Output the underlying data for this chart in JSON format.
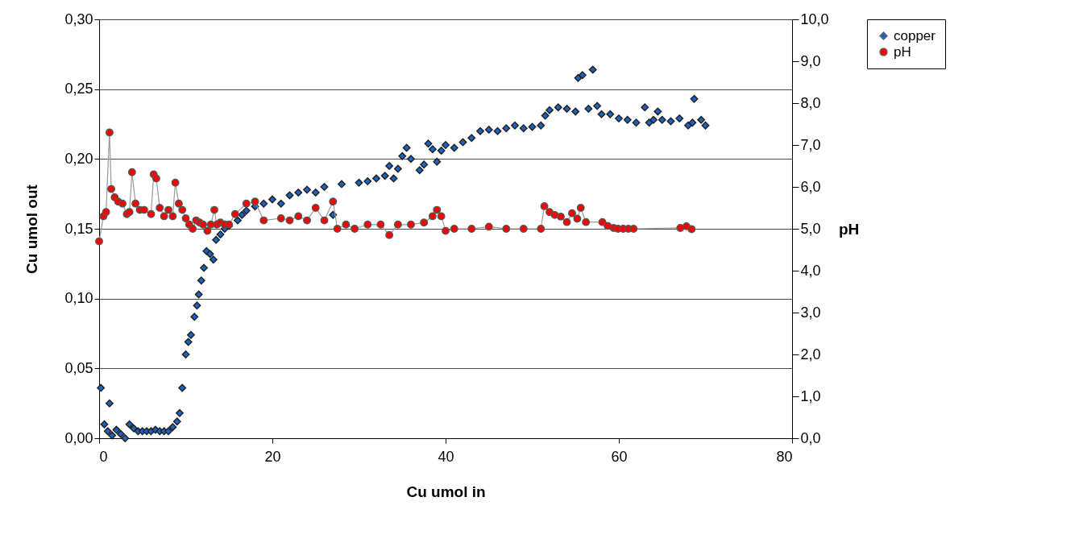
{
  "chart_data": {
    "type": "scatter",
    "xlabel": "Cu umol in",
    "ylabel": "Cu umol out",
    "y2label": "pH",
    "xlim": [
      0,
      80
    ],
    "xticks": [
      0,
      20,
      40,
      60,
      80
    ],
    "ylim": [
      0,
      0.3
    ],
    "yticks": [
      {
        "value": 0,
        "label": "0,00"
      },
      {
        "value": 0.05,
        "label": "0,05"
      },
      {
        "value": 0.1,
        "label": "0,10"
      },
      {
        "value": 0.15,
        "label": "0,15"
      },
      {
        "value": 0.2,
        "label": "0,20"
      },
      {
        "value": 0.25,
        "label": "0,25"
      },
      {
        "value": 0.3,
        "label": "0,30"
      }
    ],
    "y2lim": [
      0,
      10
    ],
    "y2ticks": [
      {
        "value": 0,
        "label": "0,0"
      },
      {
        "value": 1,
        "label": "1,0"
      },
      {
        "value": 2,
        "label": "2,0"
      },
      {
        "value": 3,
        "label": "3,0"
      },
      {
        "value": 4,
        "label": "4,0"
      },
      {
        "value": 5,
        "label": "5,0"
      },
      {
        "value": 6,
        "label": "6,0"
      },
      {
        "value": 7,
        "label": "7,0"
      },
      {
        "value": 8,
        "label": "8,0"
      },
      {
        "value": 9,
        "label": "9,0"
      },
      {
        "value": 10,
        "label": "10,0"
      }
    ],
    "grid": "y",
    "legend": "right",
    "series": [
      {
        "name": "copper",
        "marker": "diamond",
        "color": "#1a64c8",
        "x": [
          0.2,
          0.6,
          1.0,
          1.2,
          1.5,
          2.0,
          2.5,
          3.0,
          3.5,
          4.0,
          4.5,
          5.0,
          5.5,
          6.0,
          6.5,
          7.0,
          7.5,
          8.0,
          8.5,
          9.0,
          9.3,
          9.6,
          10.0,
          10.3,
          10.6,
          11.0,
          11.3,
          11.5,
          11.8,
          12.1,
          12.4,
          12.8,
          13.2,
          13.5,
          14.0,
          14.5,
          15.0,
          16.0,
          16.5,
          17.0,
          18.0,
          19.0,
          20.0,
          21.0,
          22.0,
          23.0,
          24.0,
          25.0,
          26.0,
          27.0,
          28.0,
          30.0,
          31.0,
          32.0,
          33.0,
          33.5,
          34.0,
          34.5,
          35.0,
          35.5,
          36.0,
          37.0,
          37.5,
          38.0,
          38.5,
          39.0,
          39.5,
          40.0,
          41.0,
          42.0,
          43.0,
          44.0,
          45.0,
          46.0,
          47.0,
          48.0,
          49.0,
          50.0,
          51.0,
          51.5,
          52.0,
          53.0,
          54.0,
          55.0,
          55.3,
          55.8,
          56.5,
          57.0,
          57.5,
          58.0,
          59.0,
          60.0,
          61.0,
          62.0,
          63.0,
          63.5,
          64.0,
          64.5,
          65.0,
          66.0,
          67.0,
          68.0,
          68.5,
          68.7,
          69.5,
          70.0
        ],
        "values": [
          0.036,
          0.01,
          0.005,
          0.025,
          0.002,
          0.006,
          0.003,
          0.0,
          0.01,
          0.007,
          0.005,
          0.005,
          0.005,
          0.005,
          0.006,
          0.005,
          0.005,
          0.005,
          0.008,
          0.012,
          0.018,
          0.036,
          0.06,
          0.069,
          0.074,
          0.087,
          0.095,
          0.103,
          0.113,
          0.122,
          0.134,
          0.132,
          0.128,
          0.142,
          0.146,
          0.15,
          0.152,
          0.156,
          0.16,
          0.163,
          0.166,
          0.168,
          0.171,
          0.168,
          0.174,
          0.176,
          0.178,
          0.176,
          0.18,
          0.16,
          0.182,
          0.183,
          0.184,
          0.186,
          0.188,
          0.195,
          0.186,
          0.193,
          0.202,
          0.208,
          0.2,
          0.192,
          0.196,
          0.211,
          0.207,
          0.198,
          0.206,
          0.21,
          0.208,
          0.212,
          0.215,
          0.22,
          0.221,
          0.22,
          0.222,
          0.224,
          0.222,
          0.223,
          0.224,
          0.231,
          0.235,
          0.237,
          0.236,
          0.234,
          0.258,
          0.26,
          0.236,
          0.264,
          0.238,
          0.232,
          0.232,
          0.229,
          0.228,
          0.226,
          0.237,
          0.226,
          0.228,
          0.234,
          0.228,
          0.227,
          0.229,
          0.224,
          0.226,
          0.243,
          0.228,
          0.224
        ]
      },
      {
        "name": "pH",
        "type": "line",
        "axis": "y2",
        "marker": "circle",
        "color": "#ff0000",
        "x": [
          0.0,
          0.5,
          0.8,
          1.2,
          1.4,
          1.8,
          2.2,
          2.7,
          3.2,
          3.5,
          3.8,
          4.2,
          4.7,
          5.2,
          6.0,
          6.3,
          6.6,
          7.0,
          7.5,
          8.0,
          8.5,
          8.8,
          9.2,
          9.6,
          10.0,
          10.4,
          10.8,
          11.2,
          11.6,
          12.0,
          12.5,
          12.9,
          13.3,
          13.6,
          14.0,
          14.5,
          15.0,
          15.7,
          17.0,
          18.0,
          19.0,
          21.0,
          22.0,
          23.0,
          24.0,
          25.0,
          26.0,
          27.0,
          27.5,
          28.5,
          29.5,
          31.0,
          32.5,
          33.5,
          34.5,
          36.0,
          37.5,
          38.5,
          39.0,
          39.5,
          40.0,
          41.0,
          43.0,
          45.0,
          47.0,
          49.0,
          51.0,
          51.4,
          52.0,
          52.6,
          53.3,
          54.0,
          54.6,
          55.2,
          55.6,
          56.2,
          58.1,
          58.7,
          59.4,
          59.9,
          60.5,
          61.1,
          61.7,
          67.1,
          67.8,
          68.4
        ],
        "values": [
          4.7,
          5.3,
          5.4,
          7.3,
          5.95,
          5.75,
          5.65,
          5.6,
          5.35,
          5.4,
          6.35,
          5.6,
          5.45,
          5.45,
          5.35,
          6.3,
          6.2,
          5.5,
          5.3,
          5.45,
          5.3,
          6.1,
          5.6,
          5.45,
          5.25,
          5.1,
          5.0,
          5.2,
          5.15,
          5.1,
          4.95,
          5.1,
          5.45,
          5.1,
          5.15,
          5.1,
          5.1,
          5.35,
          5.6,
          5.65,
          5.2,
          5.25,
          5.2,
          5.3,
          5.2,
          5.5,
          5.2,
          5.65,
          5.0,
          5.1,
          5.0,
          5.1,
          5.1,
          4.85,
          5.1,
          5.1,
          5.15,
          5.3,
          5.45,
          5.3,
          4.95,
          5.0,
          5.0,
          5.05,
          5.0,
          5.0,
          5.0,
          5.54,
          5.4,
          5.33,
          5.29,
          5.16,
          5.37,
          5.24,
          5.5,
          5.16,
          5.16,
          5.07,
          5.02,
          5.0,
          5.0,
          5.0,
          5.0,
          5.02,
          5.06,
          4.99
        ]
      }
    ]
  }
}
